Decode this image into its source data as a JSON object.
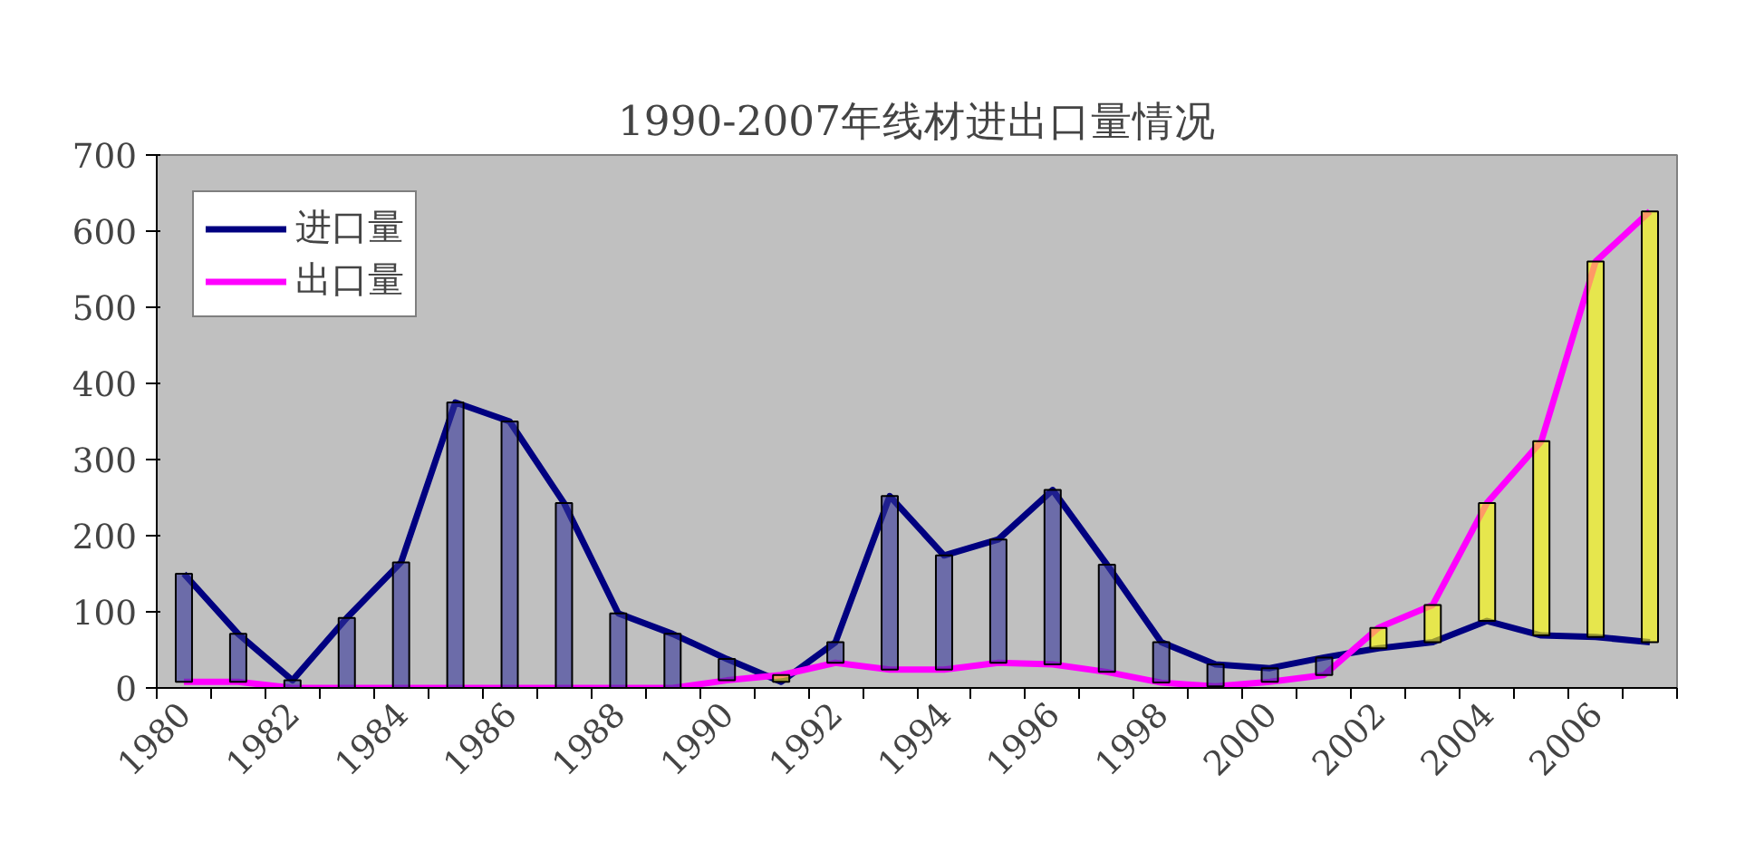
{
  "chart_data": {
    "type": "line",
    "title": "1990-2007年线材进出口量情况",
    "categories": [
      "1980",
      null,
      "1982",
      null,
      "1984",
      null,
      "1986",
      null,
      "1988",
      null,
      "1990",
      null,
      "1992",
      null,
      "1994",
      null,
      "1996",
      null,
      "1998",
      null,
      "2000",
      null,
      "2002",
      null,
      "2004",
      null,
      "2006",
      null
    ],
    "series": [
      {
        "type": "bar",
        "base": [
          8,
          8,
          0,
          0,
          0,
          0,
          0,
          0,
          0,
          0,
          10,
          8,
          33,
          24,
          24,
          33,
          31,
          21,
          7,
          2,
          8,
          17,
          52,
          60,
          88,
          69,
          67,
          60
        ],
        "values": [
          142,
          63,
          10,
          92,
          165,
          375,
          350,
          243,
          98,
          71,
          28,
          9,
          27,
          228,
          150,
          162,
          229,
          141,
          53,
          29,
          18,
          23,
          27,
          49,
          155,
          255,
          493,
          566
        ],
        "colors": [
          "#333399",
          "#333399",
          "#333399",
          "#333399",
          "#333399",
          "#333399",
          "#333399",
          "#333399",
          "#333399",
          "#333399",
          "#333399",
          "#ffff00",
          "#333399",
          "#333399",
          "#333399",
          "#333399",
          "#333399",
          "#333399",
          "#333399",
          "#333399",
          "#333399",
          "#333399",
          "#ffff00",
          "#ffff00",
          "#ffff00",
          "#ffff00",
          "#ffff00",
          "#ffff00"
        ]
      },
      {
        "name": "进口量",
        "color": "#000080",
        "values": [
          150,
          71,
          10,
          92,
          165,
          375,
          350,
          243,
          98,
          71,
          38,
          8,
          60,
          252,
          174,
          195,
          260,
          162,
          60,
          31,
          26,
          40,
          52,
          60,
          88,
          69,
          67,
          60
        ]
      },
      {
        "name": "出口量",
        "color": "#ff00ff",
        "values": [
          8,
          8,
          0,
          0,
          0,
          0,
          0,
          0,
          0,
          0,
          10,
          17,
          33,
          24,
          24,
          33,
          31,
          21,
          7,
          2,
          8,
          17,
          79,
          109,
          243,
          324,
          560,
          626
        ]
      }
    ],
    "ylim": [
      0,
      700
    ],
    "yticks": [
      0,
      100,
      200,
      300,
      400,
      500,
      600,
      700
    ],
    "grid": false,
    "legend": "top left",
    "marker": "none",
    "line_style": "solid"
  }
}
